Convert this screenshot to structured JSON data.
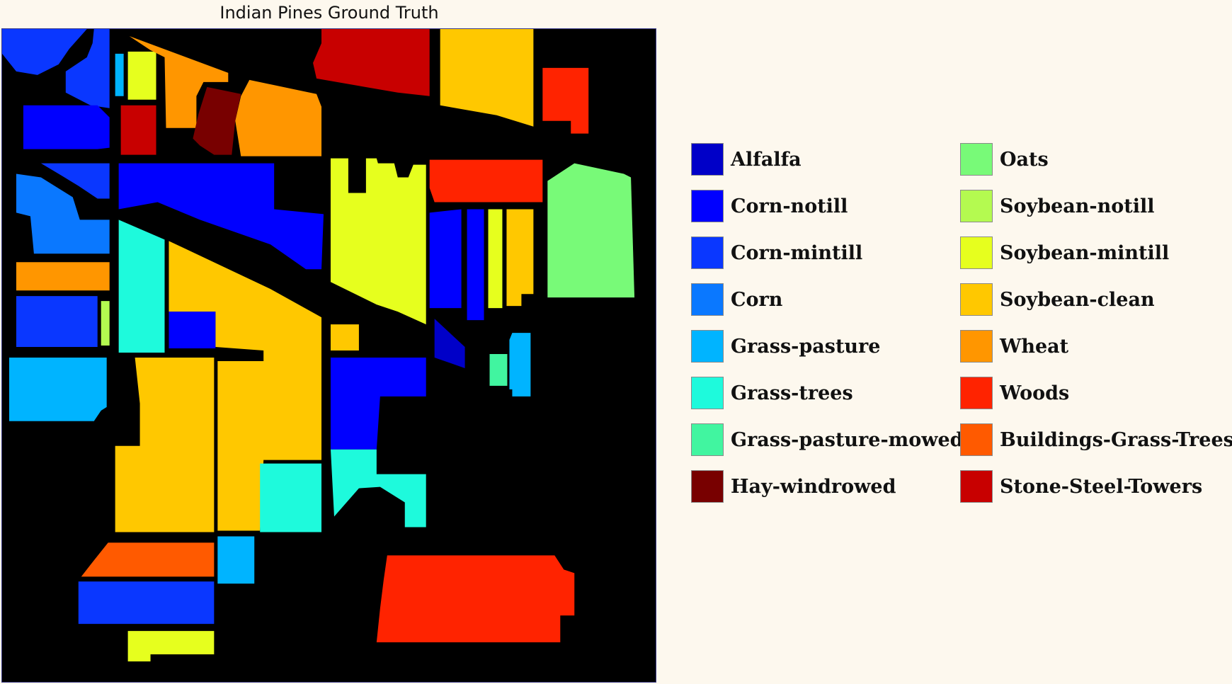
{
  "title": "Indian Pines Ground Truth",
  "background": "#000000",
  "legend": [
    {
      "label": "Alfalfa",
      "color": "#0000c8"
    },
    {
      "label": "Corn-notill",
      "color": "#0000ff"
    },
    {
      "label": "Corn-mintill",
      "color": "#0a37ff"
    },
    {
      "label": "Corn",
      "color": "#0a78ff"
    },
    {
      "label": "Grass-pasture",
      "color": "#00b4ff"
    },
    {
      "label": "Grass-trees",
      "color": "#1efadc"
    },
    {
      "label": "Grass-pasture-mowed",
      "color": "#41f5a0"
    },
    {
      "label": "Hay-windrowed",
      "color": "#780000"
    },
    {
      "label": "Oats",
      "color": "#78fa78"
    },
    {
      "label": "Soybean-notill",
      "color": "#b4fa50"
    },
    {
      "label": "Soybean-mintill",
      "color": "#e6ff1e"
    },
    {
      "label": "Soybean-clean",
      "color": "#ffc800"
    },
    {
      "label": "Wheat",
      "color": "#ff9600"
    },
    {
      "label": "Woods",
      "color": "#ff2300"
    },
    {
      "label": "Buildings-Grass-Trees",
      "color": "#ff5a00"
    },
    {
      "label": "Stone-Steel-Towers",
      "color": "#c80000"
    }
  ]
}
